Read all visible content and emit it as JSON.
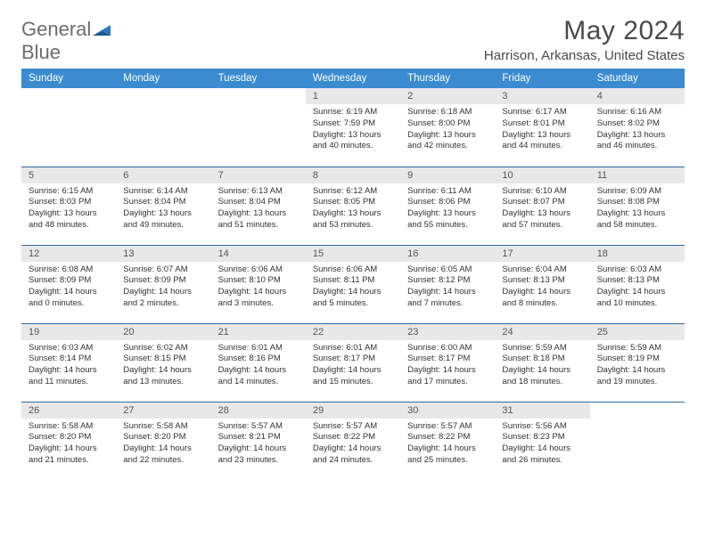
{
  "logo": {
    "word1": "General",
    "word2": "Blue"
  },
  "title": "May 2024",
  "location": "Harrison, Arkansas, United States",
  "day_headers": [
    "Sunday",
    "Monday",
    "Tuesday",
    "Wednesday",
    "Thursday",
    "Friday",
    "Saturday"
  ],
  "colors": {
    "header_bg": "#3b8bd0",
    "header_text": "#ffffff",
    "row_border": "#2c6ca8",
    "daynum_bg": "#e8e8e8",
    "daynum_text": "#555555",
    "body_text": "#333333",
    "logo_gray": "#6d6d6d",
    "logo_blue": "#2c78c1",
    "title_color": "#4a4a4a"
  },
  "fonts": {
    "title_pt": 30,
    "location_pt": 15,
    "header_pt": 11.5,
    "daynum_pt": 11,
    "body_pt": 9.5
  },
  "layout": {
    "first_weekday_index": 3,
    "rows": 5,
    "cols": 7
  },
  "days": [
    {
      "n": 1,
      "sunrise": "6:19 AM",
      "sunset": "7:59 PM",
      "daylight": "13 hours and 40 minutes."
    },
    {
      "n": 2,
      "sunrise": "6:18 AM",
      "sunset": "8:00 PM",
      "daylight": "13 hours and 42 minutes."
    },
    {
      "n": 3,
      "sunrise": "6:17 AM",
      "sunset": "8:01 PM",
      "daylight": "13 hours and 44 minutes."
    },
    {
      "n": 4,
      "sunrise": "6:16 AM",
      "sunset": "8:02 PM",
      "daylight": "13 hours and 46 minutes."
    },
    {
      "n": 5,
      "sunrise": "6:15 AM",
      "sunset": "8:03 PM",
      "daylight": "13 hours and 48 minutes."
    },
    {
      "n": 6,
      "sunrise": "6:14 AM",
      "sunset": "8:04 PM",
      "daylight": "13 hours and 49 minutes."
    },
    {
      "n": 7,
      "sunrise": "6:13 AM",
      "sunset": "8:04 PM",
      "daylight": "13 hours and 51 minutes."
    },
    {
      "n": 8,
      "sunrise": "6:12 AM",
      "sunset": "8:05 PM",
      "daylight": "13 hours and 53 minutes."
    },
    {
      "n": 9,
      "sunrise": "6:11 AM",
      "sunset": "8:06 PM",
      "daylight": "13 hours and 55 minutes."
    },
    {
      "n": 10,
      "sunrise": "6:10 AM",
      "sunset": "8:07 PM",
      "daylight": "13 hours and 57 minutes."
    },
    {
      "n": 11,
      "sunrise": "6:09 AM",
      "sunset": "8:08 PM",
      "daylight": "13 hours and 58 minutes."
    },
    {
      "n": 12,
      "sunrise": "6:08 AM",
      "sunset": "8:09 PM",
      "daylight": "14 hours and 0 minutes."
    },
    {
      "n": 13,
      "sunrise": "6:07 AM",
      "sunset": "8:09 PM",
      "daylight": "14 hours and 2 minutes."
    },
    {
      "n": 14,
      "sunrise": "6:06 AM",
      "sunset": "8:10 PM",
      "daylight": "14 hours and 3 minutes."
    },
    {
      "n": 15,
      "sunrise": "6:06 AM",
      "sunset": "8:11 PM",
      "daylight": "14 hours and 5 minutes."
    },
    {
      "n": 16,
      "sunrise": "6:05 AM",
      "sunset": "8:12 PM",
      "daylight": "14 hours and 7 minutes."
    },
    {
      "n": 17,
      "sunrise": "6:04 AM",
      "sunset": "8:13 PM",
      "daylight": "14 hours and 8 minutes."
    },
    {
      "n": 18,
      "sunrise": "6:03 AM",
      "sunset": "8:13 PM",
      "daylight": "14 hours and 10 minutes."
    },
    {
      "n": 19,
      "sunrise": "6:03 AM",
      "sunset": "8:14 PM",
      "daylight": "14 hours and 11 minutes."
    },
    {
      "n": 20,
      "sunrise": "6:02 AM",
      "sunset": "8:15 PM",
      "daylight": "14 hours and 13 minutes."
    },
    {
      "n": 21,
      "sunrise": "6:01 AM",
      "sunset": "8:16 PM",
      "daylight": "14 hours and 14 minutes."
    },
    {
      "n": 22,
      "sunrise": "6:01 AM",
      "sunset": "8:17 PM",
      "daylight": "14 hours and 15 minutes."
    },
    {
      "n": 23,
      "sunrise": "6:00 AM",
      "sunset": "8:17 PM",
      "daylight": "14 hours and 17 minutes."
    },
    {
      "n": 24,
      "sunrise": "5:59 AM",
      "sunset": "8:18 PM",
      "daylight": "14 hours and 18 minutes."
    },
    {
      "n": 25,
      "sunrise": "5:59 AM",
      "sunset": "8:19 PM",
      "daylight": "14 hours and 19 minutes."
    },
    {
      "n": 26,
      "sunrise": "5:58 AM",
      "sunset": "8:20 PM",
      "daylight": "14 hours and 21 minutes."
    },
    {
      "n": 27,
      "sunrise": "5:58 AM",
      "sunset": "8:20 PM",
      "daylight": "14 hours and 22 minutes."
    },
    {
      "n": 28,
      "sunrise": "5:57 AM",
      "sunset": "8:21 PM",
      "daylight": "14 hours and 23 minutes."
    },
    {
      "n": 29,
      "sunrise": "5:57 AM",
      "sunset": "8:22 PM",
      "daylight": "14 hours and 24 minutes."
    },
    {
      "n": 30,
      "sunrise": "5:57 AM",
      "sunset": "8:22 PM",
      "daylight": "14 hours and 25 minutes."
    },
    {
      "n": 31,
      "sunrise": "5:56 AM",
      "sunset": "8:23 PM",
      "daylight": "14 hours and 26 minutes."
    }
  ],
  "labels": {
    "sunrise": "Sunrise:",
    "sunset": "Sunset:",
    "daylight": "Daylight:"
  }
}
